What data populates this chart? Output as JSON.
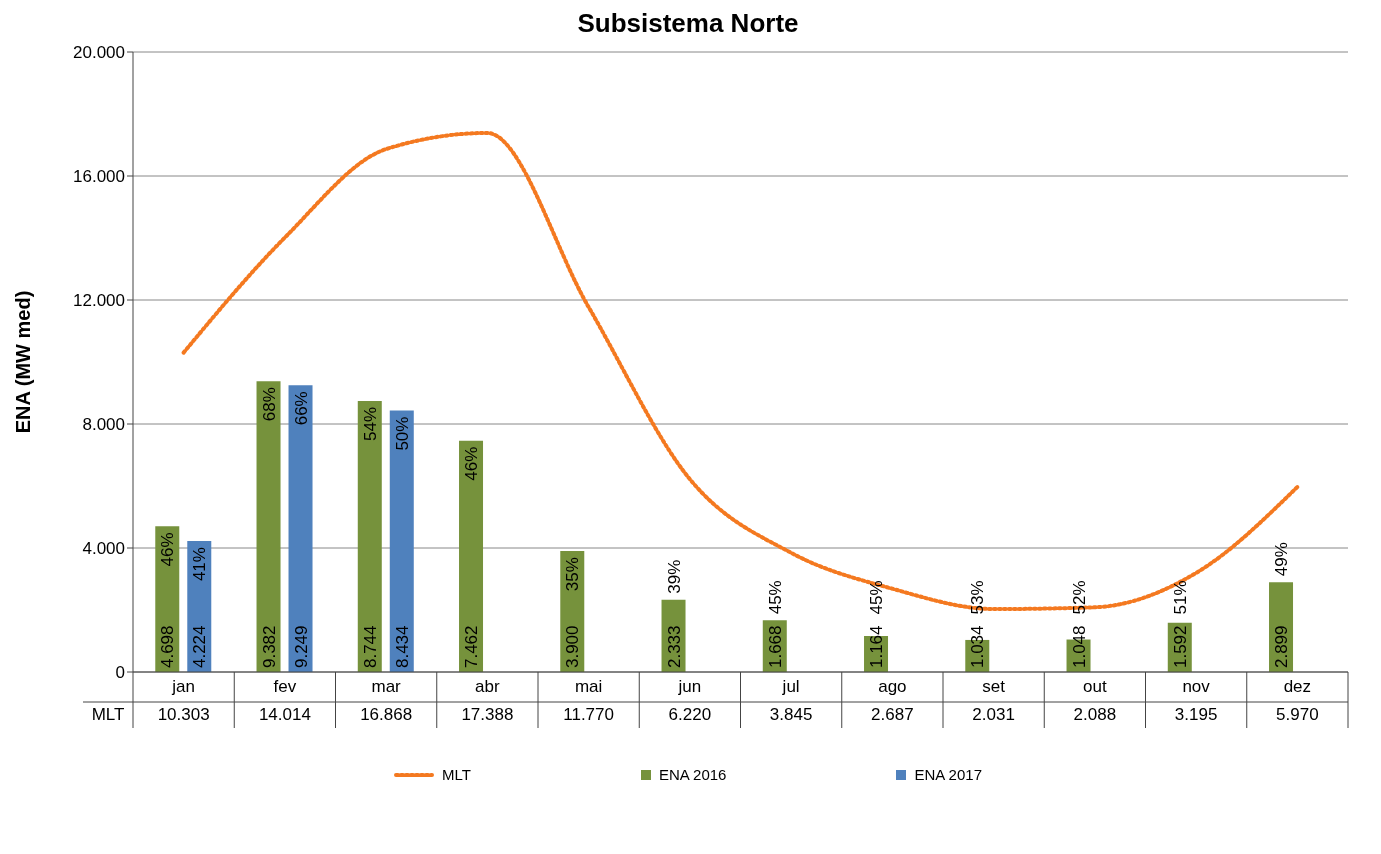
{
  "chart_data": {
    "type": "bar",
    "title": "Subsistema Norte",
    "ylabel": "ENA (MW med)",
    "categories": [
      "jan",
      "fev",
      "mar",
      "abr",
      "mai",
      "jun",
      "jul",
      "ago",
      "set",
      "out",
      "nov",
      "dez"
    ],
    "series": [
      {
        "name": "MLT",
        "type": "line",
        "color": "#f47920",
        "line_style": "dotted",
        "values": [
          10303,
          14014,
          16868,
          17388,
          11770,
          6220,
          3845,
          2687,
          2031,
          2088,
          3195,
          5970
        ],
        "value_labels": [
          "10.303",
          "14.014",
          "16.868",
          "17.388",
          "11.770",
          "6.220",
          "3.845",
          "2.687",
          "2.031",
          "2.088",
          "3.195",
          "5.970"
        ]
      },
      {
        "name": "ENA 2016",
        "color": "#76923c",
        "values": [
          4698,
          9382,
          8744,
          7462,
          3900,
          2333,
          1668,
          1164,
          1034,
          1048,
          1592,
          2899
        ],
        "value_labels": [
          "4.698",
          "9.382",
          "8.744",
          "7.462",
          "3.900",
          "2.333",
          "1.668",
          "1.164",
          "1.034",
          "1.048",
          "1.592",
          "2.899"
        ]
      },
      {
        "name": "ENA 2017",
        "color": "#4f81bd",
        "values": [
          4224,
          9249,
          8434,
          null,
          null,
          null,
          null,
          null,
          null,
          null,
          null,
          null
        ],
        "value_labels": [
          "4.224",
          "9.249",
          "8.434",
          null,
          null,
          null,
          null,
          null,
          null,
          null,
          null,
          null
        ]
      }
    ],
    "annotations": [
      {
        "text": "46%",
        "x": "jan",
        "y": 4698
      },
      {
        "text": "68%",
        "x": "fev",
        "y": 9382
      },
      {
        "text": "54%",
        "x": "mar",
        "y": 8744
      },
      {
        "text": "46%",
        "x": "abr",
        "y": 7462
      },
      {
        "text": "35%",
        "x": "mai",
        "y": 3900
      },
      {
        "text": "39%",
        "x": "jun",
        "y": 2333
      },
      {
        "text": "45%",
        "x": "jul",
        "y": 1668
      },
      {
        "text": "45%",
        "x": "ago",
        "y": 1164
      },
      {
        "text": "53%",
        "x": "set",
        "y": 1034
      },
      {
        "text": "52%",
        "x": "out",
        "y": 1048
      },
      {
        "text": "51%",
        "x": "nov",
        "y": 1592
      },
      {
        "text": "49%",
        "x": "dez",
        "y": 2899
      },
      {
        "text": "41%",
        "x": "jan",
        "y": 4224
      },
      {
        "text": "66%",
        "x": "fev",
        "y": 9249
      },
      {
        "text": "50%",
        "x": "mar",
        "y": 8434
      }
    ],
    "ylim": [
      0,
      20000
    ],
    "yticks": [
      {
        "value": 0,
        "label": "0"
      },
      {
        "value": 4000,
        "label": "4.000"
      },
      {
        "value": 8000,
        "label": "8.000"
      },
      {
        "value": 12000,
        "label": "12.000"
      },
      {
        "value": 16000,
        "label": "16.000"
      },
      {
        "value": 20000,
        "label": "20.000"
      }
    ],
    "grid": "y",
    "legend": "bottom",
    "marker": "none"
  }
}
